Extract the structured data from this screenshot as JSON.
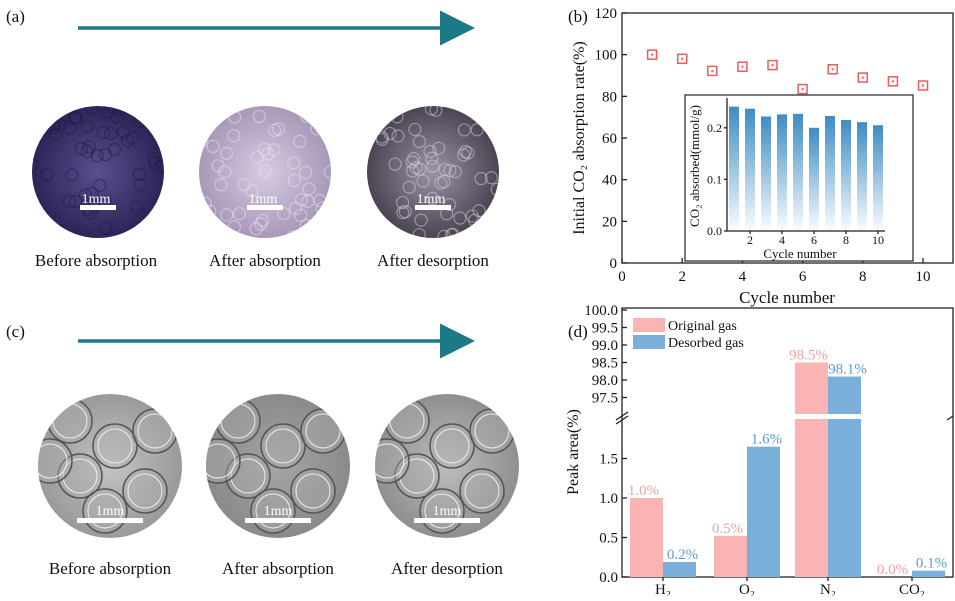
{
  "panels": {
    "a": {
      "label": "(a)",
      "scale": "1mm",
      "captions": [
        "Before absorption",
        "After absorption",
        "After desorption"
      ]
    },
    "b": {
      "label": "(b)"
    },
    "c": {
      "label": "(c)",
      "scale": "1mm",
      "captions": [
        "Before absorption",
        "After absorption",
        "After desorption"
      ]
    },
    "d": {
      "label": "(d)"
    }
  },
  "colors": {
    "arrow": "#1b7a86",
    "scatter": "#ef5b5b",
    "inset_bar": "#3d8cc4",
    "original": "#fbb4b4",
    "desorbed": "#7aafdc",
    "original_label": "#f4a0a0",
    "desorbed_label": "#5b9bd5"
  },
  "chart_data": [
    {
      "type": "scatter",
      "title": "",
      "xlabel": "Cycle number",
      "ylabel": "Initial CO₂ absorption rate(%)",
      "xlim": [
        0,
        11
      ],
      "ylim": [
        0,
        120
      ],
      "xticks": [
        "0",
        "2",
        "4",
        "6",
        "8",
        "10"
      ],
      "yticks": [
        "0",
        "20",
        "40",
        "60",
        "80",
        "100",
        "120"
      ],
      "x": [
        1,
        2,
        3,
        4,
        5,
        6,
        7,
        8,
        9,
        10
      ],
      "y": [
        100,
        98,
        92.2,
        94.2,
        95,
        83.5,
        93,
        89,
        87.2,
        85.2
      ]
    },
    {
      "type": "bar",
      "title": "inset",
      "xlabel": "Cycle number",
      "ylabel": "CO₂ absorbed(mmol/g)",
      "ylim": [
        0,
        0.25
      ],
      "xticks": [
        "2",
        "4",
        "6",
        "8",
        "10"
      ],
      "yticks": [
        "0.0",
        "0.1",
        "0.2"
      ],
      "x": [
        1,
        2,
        3,
        4,
        5,
        6,
        7,
        8,
        9,
        10
      ],
      "values": [
        0.241,
        0.237,
        0.222,
        0.226,
        0.227,
        0.2,
        0.223,
        0.215,
        0.211,
        0.205
      ]
    },
    {
      "type": "bar",
      "title": "",
      "xlabel": "",
      "ylabel": "Peak area(%)",
      "axis_break": [
        2.0,
        96.9
      ],
      "yticks_lower": [
        "0.0",
        "0.5",
        "1.0",
        "1.5"
      ],
      "yticks_upper": [
        "97.5",
        "98.0",
        "98.5",
        "99.0",
        "99.5",
        "100.0"
      ],
      "categories": [
        "H₂",
        "O₂",
        "N₂",
        "CO₂"
      ],
      "legend_position": "top-left",
      "series": [
        {
          "name": "Original gas",
          "values": [
            1.0,
            0.52,
            98.5,
            0.0
          ],
          "labels": [
            "1.0%",
            "0.5%",
            "98.5%",
            "0.0%"
          ]
        },
        {
          "name": "Desorbed gas",
          "values": [
            0.19,
            1.65,
            98.1,
            0.08
          ],
          "labels": [
            "0.2%",
            "1.6%",
            "98.1%",
            "0.1%"
          ]
        }
      ]
    }
  ]
}
